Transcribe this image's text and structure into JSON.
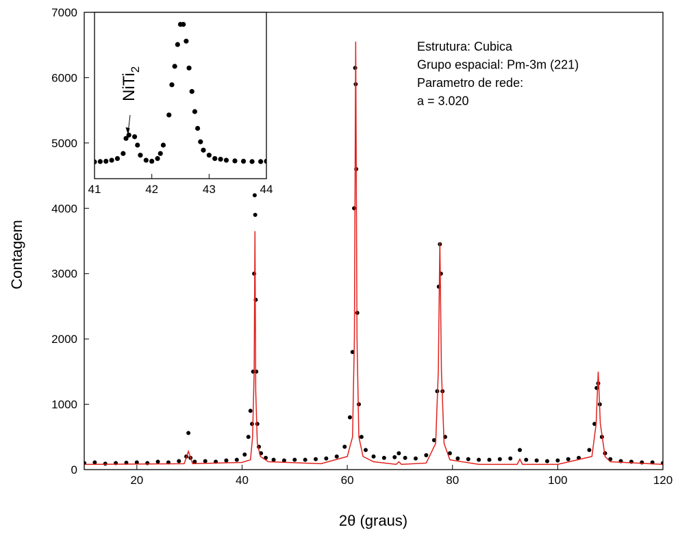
{
  "chart_data": {
    "type": "scatter",
    "x_label": "2θ (graus)",
    "y_label": "Contagem",
    "xlim": [
      10,
      120
    ],
    "ylim": [
      0,
      7000
    ],
    "xticks": [
      20,
      40,
      60,
      80,
      100,
      120
    ],
    "yticks": [
      0,
      1000,
      2000,
      3000,
      4000,
      5000,
      6000,
      7000
    ],
    "series": [
      {
        "type": "scatter",
        "color": "#000000",
        "x": [
          10,
          12,
          14,
          16,
          18,
          20,
          22,
          24,
          26,
          28,
          29.4,
          29.8,
          30.2,
          31,
          33,
          35,
          37,
          39,
          40.5,
          41.2,
          41.6,
          41.9,
          42.1,
          42.3,
          42.4,
          42.5,
          42.6,
          42.7,
          42.9,
          43.2,
          43.6,
          44.5,
          46,
          48,
          50,
          52,
          54,
          56,
          58,
          59.5,
          60.5,
          61,
          61.3,
          61.5,
          61.6,
          61.7,
          61.9,
          62.2,
          62.7,
          63.5,
          65,
          67,
          69,
          69.8,
          71,
          73,
          75,
          76.5,
          77.1,
          77.4,
          77.6,
          77.8,
          78.1,
          78.6,
          79.5,
          81,
          83,
          85,
          87,
          89,
          91,
          92.8,
          94,
          96,
          98,
          100,
          102,
          104,
          106,
          107,
          107.4,
          107.7,
          108,
          108.4,
          109,
          110,
          112,
          114,
          116,
          118,
          120
        ],
        "values": [
          100,
          110,
          90,
          100,
          105,
          110,
          100,
          120,
          110,
          130,
          200,
          560,
          180,
          120,
          130,
          120,
          140,
          150,
          230,
          500,
          900,
          700,
          1500,
          3000,
          4200,
          3900,
          2600,
          1500,
          700,
          350,
          250,
          180,
          150,
          140,
          150,
          150,
          160,
          170,
          200,
          350,
          800,
          1800,
          4000,
          6150,
          5900,
          4600,
          2400,
          1000,
          500,
          300,
          200,
          180,
          190,
          250,
          180,
          170,
          220,
          450,
          1200,
          2800,
          3450,
          3000,
          1200,
          500,
          250,
          170,
          160,
          150,
          150,
          160,
          170,
          300,
          150,
          140,
          130,
          140,
          160,
          180,
          300,
          700,
          1250,
          1320,
          1000,
          500,
          250,
          160,
          130,
          120,
          110,
          110,
          100
        ]
      },
      {
        "type": "line",
        "color": "#e0201b",
        "x": [
          10,
          29,
          29.8,
          30.6,
          40,
          41.6,
          42,
          42.3,
          42.45,
          42.6,
          42.9,
          43.5,
          45,
          55,
          60,
          61,
          61.35,
          61.6,
          61.85,
          62.2,
          63,
          65,
          69.3,
          69.8,
          70.3,
          75,
          76.8,
          77.3,
          77.6,
          77.9,
          78.4,
          79.5,
          85,
          92.3,
          92.8,
          93.3,
          100,
          106.5,
          107.3,
          107.7,
          108.1,
          109,
          110,
          120
        ],
        "values": [
          80,
          90,
          280,
          90,
          110,
          150,
          500,
          1500,
          3650,
          1200,
          400,
          200,
          120,
          90,
          200,
          500,
          2000,
          6550,
          2000,
          500,
          200,
          120,
          80,
          120,
          80,
          100,
          400,
          1500,
          3480,
          1500,
          400,
          150,
          80,
          80,
          160,
          80,
          80,
          200,
          700,
          1500,
          700,
          200,
          120,
          80
        ]
      }
    ],
    "annotation": [
      "Estrutura: Cubica",
      "Grupo espacial: Pm-3m (221)",
      "Parametro de rede:",
      "a = 3.020"
    ],
    "inset": {
      "type": "scatter",
      "color": "#000000",
      "xlim": [
        41,
        44
      ],
      "ylim": [
        -400,
        4560
      ],
      "xticks": [
        41,
        42,
        43,
        44
      ],
      "x": [
        41,
        41.1,
        41.2,
        41.3,
        41.4,
        41.5,
        41.55,
        41.6,
        41.7,
        41.75,
        41.8,
        41.9,
        42,
        42.1,
        42.15,
        42.2,
        42.3,
        42.35,
        42.4,
        42.45,
        42.5,
        42.55,
        42.6,
        42.65,
        42.7,
        42.75,
        42.8,
        42.85,
        42.9,
        43,
        43.1,
        43.2,
        43.3,
        43.45,
        43.6,
        43.75,
        43.9,
        44
      ],
      "values": [
        100,
        110,
        120,
        150,
        200,
        350,
        800,
        900,
        850,
        600,
        300,
        150,
        120,
        200,
        350,
        600,
        1500,
        2400,
        2950,
        3600,
        4200,
        4200,
        3700,
        2900,
        2200,
        1600,
        1100,
        700,
        450,
        300,
        200,
        180,
        150,
        130,
        120,
        110,
        110,
        120
      ],
      "label": {
        "text": "NiTi",
        "subscript": "2"
      }
    }
  }
}
